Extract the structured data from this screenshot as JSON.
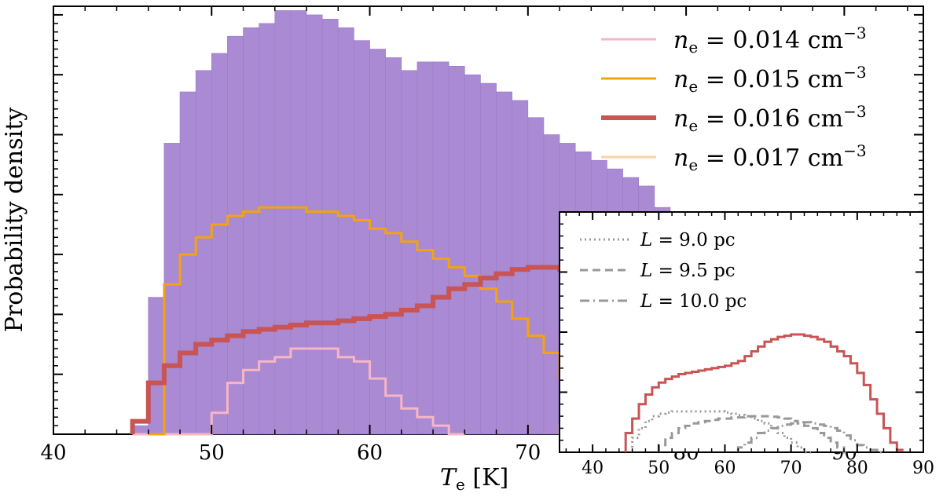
{
  "chart_data": [
    {
      "type": "histogram",
      "title": "",
      "xlabel": "T_e [K]",
      "xlabel_parts": {
        "symbol": "T",
        "sub": "e",
        "unit": " [K]"
      },
      "ylabel": "Probability density",
      "xlim": [
        40,
        95
      ],
      "ylim": [
        0,
        1.0
      ],
      "x_ticks": [
        40,
        50,
        60,
        70,
        80,
        90
      ],
      "x_tick_labels": [
        "40",
        "50",
        "60",
        "70",
        "80",
        "90"
      ],
      "legend": {
        "placement": "top-right",
        "entries": [
          {
            "prefix": "n",
            "sub": "e",
            "text": " = 0.014 cm",
            "sup": "−3"
          },
          {
            "prefix": "n",
            "sub": "e",
            "text": " = 0.015 cm",
            "sup": "−3"
          },
          {
            "prefix": "n",
            "sub": "e",
            "text": " = 0.016 cm",
            "sup": "−3"
          },
          {
            "prefix": "n",
            "sub": "e",
            "text": " = 0.017 cm",
            "sup": "−3"
          }
        ]
      },
      "colors": {
        "fill": "#a98ad3",
        "ne014": "#f7b6c6",
        "ne015": "#f4a30e",
        "ne016": "#c85454",
        "ne017": "#f9d3aa"
      },
      "bin_width": 1,
      "bins_start": 45,
      "filled_histogram": [
        0.02,
        0.32,
        0.68,
        0.8,
        0.85,
        0.89,
        0.93,
        0.95,
        0.96,
        0.99,
        0.99,
        0.98,
        0.97,
        0.95,
        0.92,
        0.9,
        0.88,
        0.85,
        0.87,
        0.87,
        0.86,
        0.84,
        0.82,
        0.8,
        0.78,
        0.74,
        0.7,
        0.68,
        0.66,
        0.64,
        0.62,
        0.6,
        0.58,
        0.53,
        0.49,
        0.45,
        0.41,
        0.37,
        0.33,
        0.3,
        0.27,
        0.23,
        0.19,
        0.16,
        0.13,
        0.11,
        0.09,
        0.07,
        0.05,
        0.04
      ],
      "series": [
        {
          "key": "ne014",
          "values": [
            0,
            0,
            0,
            0,
            0,
            0.05,
            0.12,
            0.15,
            0.17,
            0.18,
            0.2,
            0.2,
            0.2,
            0.18,
            0.17,
            0.13,
            0.09,
            0.06,
            0.04,
            0.02,
            0.0
          ]
        },
        {
          "key": "ne015",
          "values": [
            0,
            0.35,
            0.42,
            0.46,
            0.49,
            0.51,
            0.52,
            0.53,
            0.53,
            0.53,
            0.52,
            0.52,
            0.51,
            0.5,
            0.48,
            0.47,
            0.45,
            0.43,
            0.41,
            0.39,
            0.37,
            0.34,
            0.31,
            0.27,
            0.23,
            0.19,
            0.13,
            0.09,
            0.05,
            0.01,
            0.0
          ]
        },
        {
          "key": "ne016",
          "values": [
            0.03,
            0.12,
            0.16,
            0.19,
            0.21,
            0.22,
            0.23,
            0.24,
            0.245,
            0.25,
            0.255,
            0.26,
            0.26,
            0.265,
            0.27,
            0.275,
            0.28,
            0.29,
            0.3,
            0.32,
            0.34,
            0.35,
            0.365,
            0.375,
            0.385,
            0.39,
            0.39,
            0.385,
            0.38,
            0.37,
            0.355,
            0.34,
            0.32,
            0.29,
            0.25,
            0.21,
            0.17,
            0.12,
            0.09,
            0.06,
            0.035,
            0.02,
            0.01,
            0.0
          ]
        },
        {
          "key": "ne017",
          "values": [
            0.02,
            0.06,
            0.08,
            0.09,
            0.1,
            0.11,
            0.12,
            0.13,
            0.14,
            0.15,
            0.16,
            0.165,
            0.165,
            0.16,
            0.16,
            0.15,
            0.13,
            0.1,
            0.07,
            0.05,
            0.03,
            0.02,
            0.01,
            0.0
          ],
          "x_start": 72
        }
      ]
    },
    {
      "type": "histogram",
      "title": "",
      "xlim": [
        35,
        90
      ],
      "ylim": [
        0,
        1.0
      ],
      "x_ticks": [
        40,
        50,
        60,
        70,
        80,
        90
      ],
      "x_tick_labels": [
        "40",
        "50",
        "60",
        "70",
        "80",
        "90"
      ],
      "legend": {
        "placement": "top-left",
        "entries": [
          {
            "prefix": "L",
            "text": " = 9.0 pc",
            "style": "dotted"
          },
          {
            "prefix": "L",
            "text": " = 9.5 pc",
            "style": "dashed"
          },
          {
            "prefix": "L",
            "text": " = 10.0 pc",
            "style": "dashdot"
          }
        ]
      },
      "colors": {
        "main": "#c85454",
        "components": "#999999"
      },
      "bin_width": 1,
      "series": [
        {
          "key": "total",
          "x_start": 45,
          "values": [
            0.08,
            0.14,
            0.2,
            0.24,
            0.27,
            0.29,
            0.305,
            0.315,
            0.325,
            0.33,
            0.335,
            0.34,
            0.345,
            0.35,
            0.355,
            0.36,
            0.37,
            0.38,
            0.4,
            0.42,
            0.44,
            0.46,
            0.47,
            0.48,
            0.485,
            0.49,
            0.49,
            0.485,
            0.48,
            0.47,
            0.46,
            0.44,
            0.42,
            0.4,
            0.37,
            0.33,
            0.28,
            0.22,
            0.16,
            0.1,
            0.04,
            0.01
          ]
        },
        {
          "key": "L9.0",
          "style": "dotted",
          "x_start": 46,
          "values": [
            0.06,
            0.1,
            0.13,
            0.15,
            0.16,
            0.165,
            0.17,
            0.17,
            0.17,
            0.17,
            0.17,
            0.17,
            0.17,
            0.17,
            0.165,
            0.16,
            0.155,
            0.15,
            0.14,
            0.13,
            0.12,
            0.1,
            0.08,
            0.06,
            0.04,
            0.02,
            0.0
          ]
        },
        {
          "key": "L9.5",
          "style": "dashed",
          "x_start": 50,
          "values": [
            0.03,
            0.06,
            0.08,
            0.1,
            0.11,
            0.12,
            0.125,
            0.13,
            0.135,
            0.14,
            0.14,
            0.145,
            0.145,
            0.15,
            0.15,
            0.15,
            0.15,
            0.148,
            0.145,
            0.14,
            0.13,
            0.12,
            0.11,
            0.1,
            0.08,
            0.06,
            0.04,
            0.02,
            0.0
          ]
        },
        {
          "key": "L10.0",
          "style": "dashdot",
          "x_start": 62,
          "values": [
            0.02,
            0.04,
            0.06,
            0.08,
            0.09,
            0.1,
            0.11,
            0.115,
            0.12,
            0.125,
            0.125,
            0.12,
            0.115,
            0.11,
            0.1,
            0.09,
            0.07,
            0.05,
            0.03,
            0.02,
            0.01,
            0.0
          ]
        }
      ]
    }
  ]
}
